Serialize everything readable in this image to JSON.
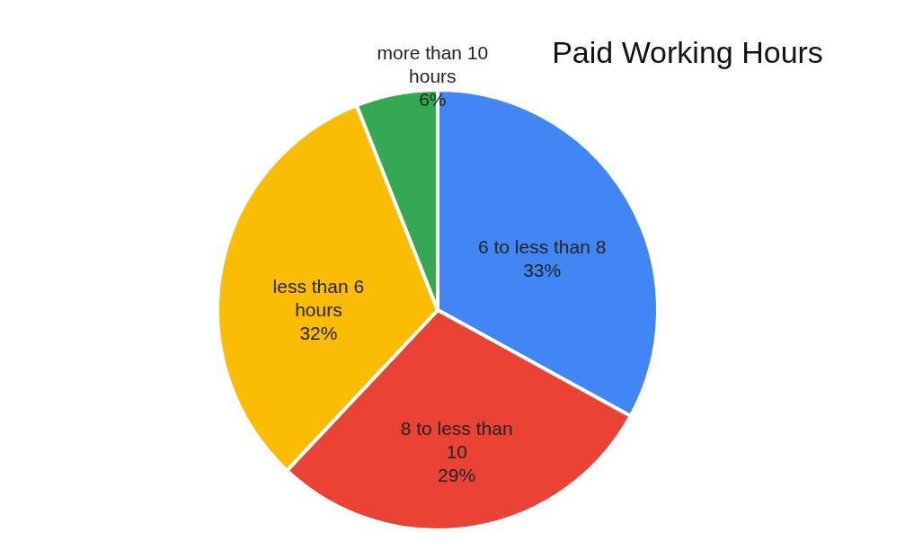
{
  "chart_data": {
    "type": "pie",
    "title": "Paid Working Hours",
    "categories": [
      "6 to less than 8",
      "8 to less than 10",
      "less than 6 hours",
      "more than 10 hours"
    ],
    "values": [
      33,
      29,
      32,
      6
    ],
    "colors": [
      "#4285f4",
      "#ea4335",
      "#fbbc04",
      "#34a853"
    ],
    "value_labels": [
      "33%",
      "29%",
      "32%",
      "6%"
    ]
  }
}
